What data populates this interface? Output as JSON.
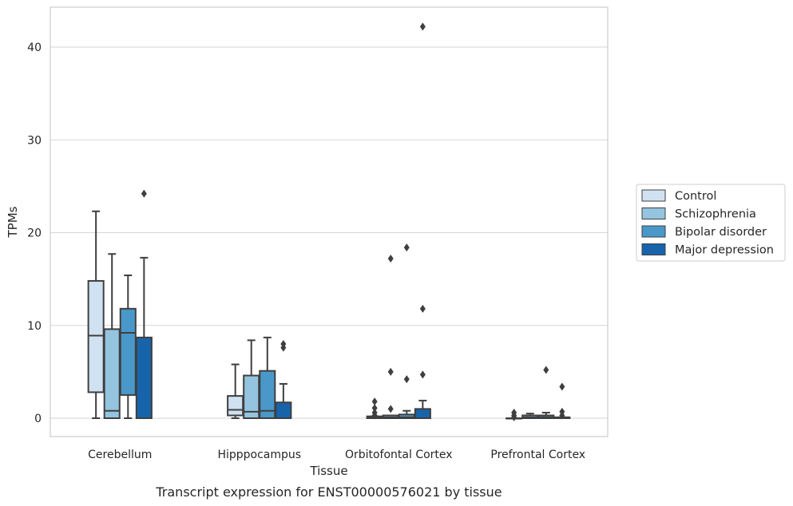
{
  "chart_data": {
    "type": "box",
    "xlabel": "Tissue",
    "ylabel": "TPMs",
    "caption": "Transcript expression for ENST00000576021 by tissue",
    "ylim": [
      -2,
      44
    ],
    "yticks": [
      0,
      10,
      20,
      30,
      40
    ],
    "grid": "horizontal",
    "legend_position": "right",
    "categories": [
      "Cerebellum",
      "Hipppocampus",
      "Orbitofontal Cortex",
      "Prefrontal Cortex"
    ],
    "series": [
      {
        "name": "Control",
        "color": "#d0e1f2",
        "boxes": [
          {
            "whisker_low": 0,
            "q1": 2.8,
            "median": 8.9,
            "q3": 14.8,
            "whisker_high": 22.3,
            "outliers": []
          },
          {
            "whisker_low": 0,
            "q1": 0.3,
            "median": 0.9,
            "q3": 2.4,
            "whisker_high": 5.8,
            "outliers": []
          },
          {
            "whisker_low": 0,
            "q1": 0,
            "median": 0.1,
            "q3": 0.2,
            "whisker_high": 0.2,
            "outliers": [
              0.3,
              0.6,
              1.1,
              1.8
            ]
          },
          {
            "whisker_low": 0,
            "q1": 0,
            "median": 0,
            "q3": 0,
            "whisker_high": 0,
            "outliers": [
              0.1,
              0.3,
              0.6
            ]
          }
        ]
      },
      {
        "name": "Schizophrenia",
        "color": "#94c4df",
        "boxes": [
          {
            "whisker_low": 0,
            "q1": 0,
            "median": 0.8,
            "q3": 9.6,
            "whisker_high": 17.7,
            "outliers": []
          },
          {
            "whisker_low": 0,
            "q1": 0,
            "median": 0.7,
            "q3": 4.6,
            "whisker_high": 8.4,
            "outliers": []
          },
          {
            "whisker_low": 0,
            "q1": 0,
            "median": 0.1,
            "q3": 0.3,
            "whisker_high": 0.3,
            "outliers": [
              1.0,
              5.0,
              17.2
            ]
          },
          {
            "whisker_low": 0,
            "q1": 0,
            "median": 0.1,
            "q3": 0.3,
            "whisker_high": 0.5,
            "outliers": []
          }
        ]
      },
      {
        "name": "Bipolar disorder",
        "color": "#4a98c9",
        "boxes": [
          {
            "whisker_low": 0,
            "q1": 2.5,
            "median": 9.2,
            "q3": 11.8,
            "whisker_high": 15.4,
            "outliers": []
          },
          {
            "whisker_low": 0,
            "q1": 0,
            "median": 0.8,
            "q3": 5.1,
            "whisker_high": 8.7,
            "outliers": []
          },
          {
            "whisker_low": 0,
            "q1": 0,
            "median": 0.1,
            "q3": 0.4,
            "whisker_high": 0.8,
            "outliers": [
              4.2,
              18.4
            ]
          },
          {
            "whisker_low": 0,
            "q1": 0,
            "median": 0.1,
            "q3": 0.3,
            "whisker_high": 0.6,
            "outliers": [
              5.2
            ]
          }
        ]
      },
      {
        "name": "Major depression",
        "color": "#1764ab",
        "boxes": [
          {
            "whisker_low": 0,
            "q1": 0,
            "median": 0,
            "q3": 8.7,
            "whisker_high": 17.3,
            "outliers": [
              24.2
            ]
          },
          {
            "whisker_low": 0,
            "q1": 0,
            "median": 0,
            "q3": 1.7,
            "whisker_high": 3.7,
            "outliers": [
              7.6,
              8.0
            ]
          },
          {
            "whisker_low": 0,
            "q1": 0,
            "median": 0,
            "q3": 1.0,
            "whisker_high": 1.9,
            "outliers": [
              4.7,
              11.8,
              42.2
            ]
          },
          {
            "whisker_low": 0,
            "q1": 0,
            "median": 0,
            "q3": 0.1,
            "whisker_high": 0.1,
            "outliers": [
              0.3,
              0.7,
              3.4
            ]
          }
        ]
      }
    ]
  }
}
